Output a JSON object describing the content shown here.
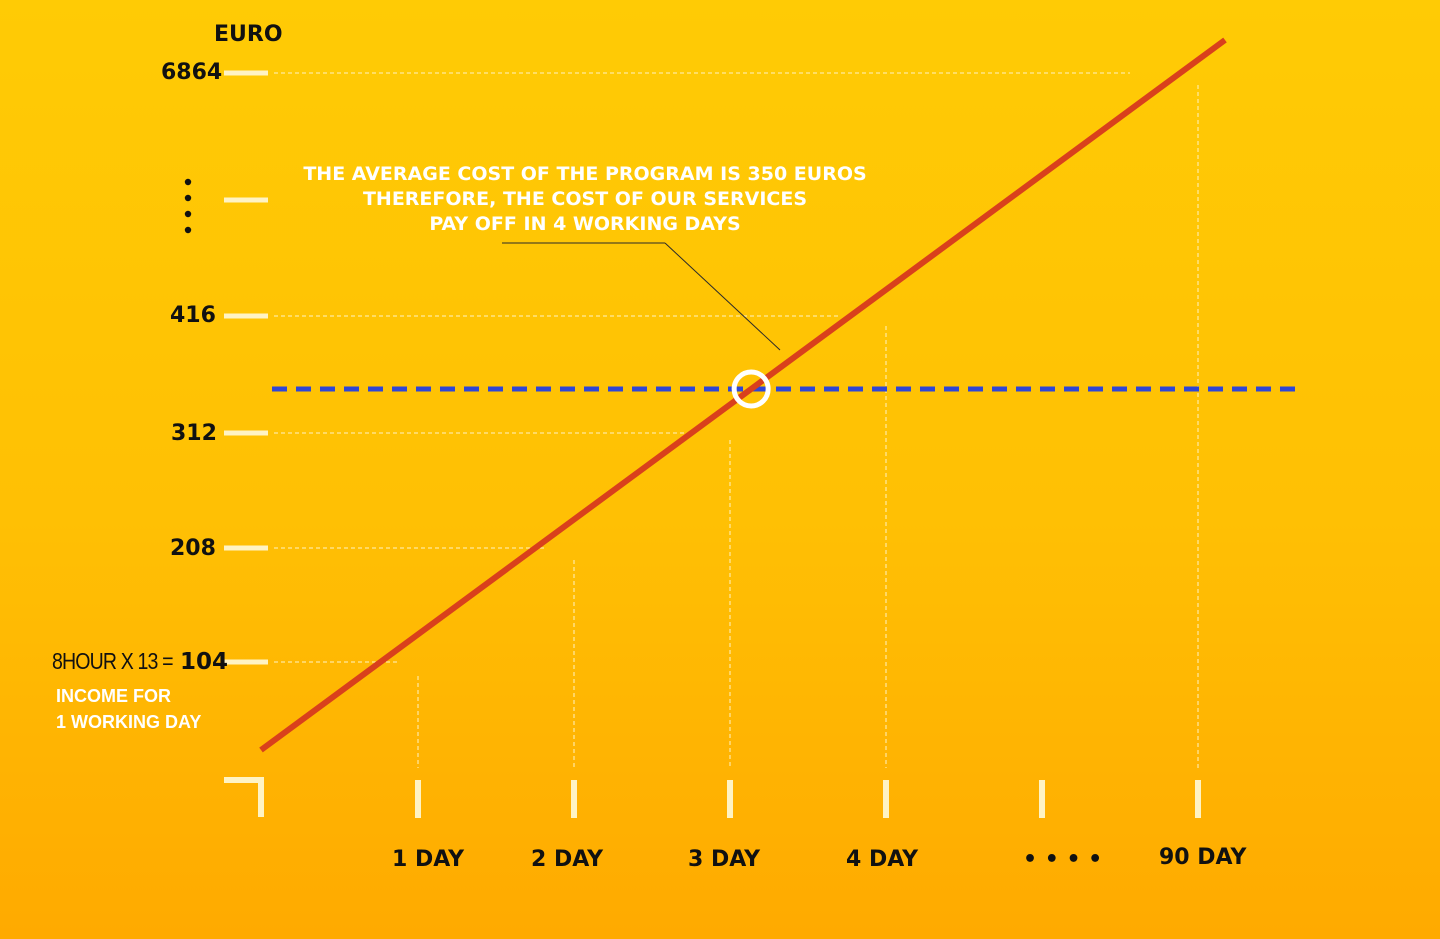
{
  "colors": {
    "background_top": "#FFCB05",
    "background_bottom": "#FFAA00",
    "line": "#D9401C",
    "threshold_line": "#2F46D6",
    "tick": "#FFF3C4",
    "guide": "#FFF3C4",
    "text_dark": "#111111",
    "text_light": "#FFFFFF"
  },
  "chart_data": {
    "type": "line",
    "ylabel": "EURO",
    "y_tick_labels": [
      "104",
      "208",
      "312",
      "416",
      "⋮",
      "6864"
    ],
    "x_tick_labels": [
      "1 DAY",
      "2 DAY",
      "3 DAY",
      "4 DAY",
      "• • • •",
      "90 DAY"
    ],
    "series": [
      {
        "x": [
          0,
          1,
          2,
          3,
          4,
          90
        ],
        "y": [
          0,
          104,
          208,
          312,
          416,
          6864
        ]
      }
    ],
    "threshold": {
      "y": 350,
      "style": "dashed"
    },
    "crossing_marker": {
      "y": 350
    },
    "annotation": [
      "THE AVERAGE COST OF THE PROGRAM IS 350 EUROS",
      "THEREFORE, THE COST OF OUR SERVICES",
      "PAY OFF IN 4 WORKING DAYS"
    ],
    "formula_prefix": "8HOUR X 13 =",
    "formula_value": "104",
    "formula_note": [
      "INCOME FOR",
      "1 WORKING DAY"
    ]
  }
}
